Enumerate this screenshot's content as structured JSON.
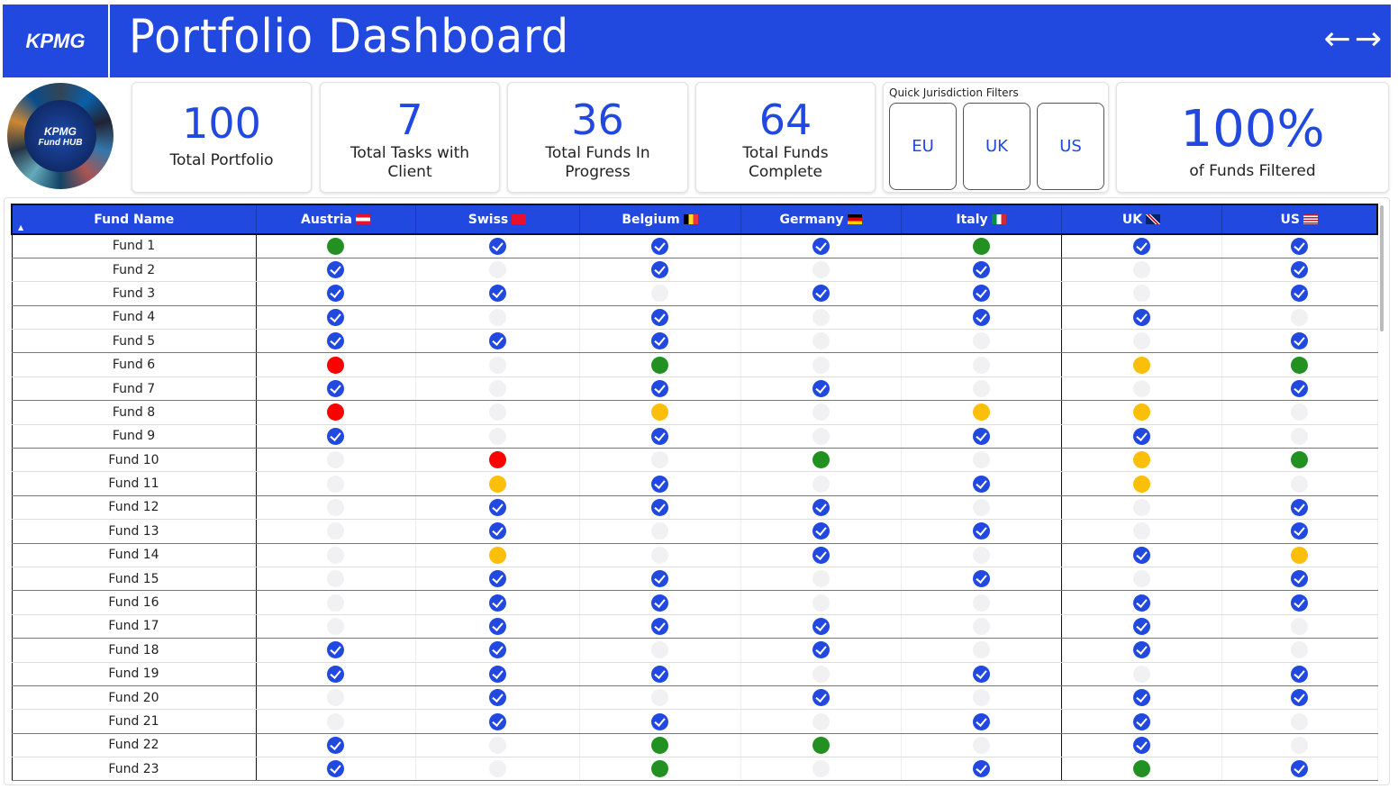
{
  "header": {
    "logo": "KPMG",
    "title": "Portfolio Dashboard",
    "back": "←",
    "forward": "→"
  },
  "hub_logo": {
    "line1": "KPMG",
    "line2": "Fund HUB"
  },
  "cards": [
    {
      "value": "100",
      "label": "Total Portfolio"
    },
    {
      "value": "7",
      "label": "Total Tasks with Client"
    },
    {
      "value": "36",
      "label": "Total Funds In Progress"
    },
    {
      "value": "64",
      "label": "Total Funds Complete"
    }
  ],
  "quick_filters": {
    "title": "Quick Jurisdiction Filters",
    "buttons": [
      "EU",
      "UK",
      "US"
    ]
  },
  "filtered": {
    "value": "100%",
    "label": "of Funds Filtered"
  },
  "colors": {
    "brand": "#2148df",
    "complete": "#2148df",
    "green": "#229122",
    "red": "#ff0000",
    "amber": "#fbbf0a",
    "empty": "#f1f1f3"
  },
  "table": {
    "columns": [
      {
        "label": "Fund Name",
        "flag": null
      },
      {
        "label": "Austria",
        "flag": "austria"
      },
      {
        "label": "Swiss",
        "flag": "swiss"
      },
      {
        "label": "Belgium",
        "flag": "belgium"
      },
      {
        "label": "Germany",
        "flag": "germany"
      },
      {
        "label": "Italy",
        "flag": "italy"
      },
      {
        "label": "UK",
        "flag": "uk"
      },
      {
        "label": "US",
        "flag": "us"
      }
    ],
    "status_legend": {
      "c": "check",
      "g": "green",
      "r": "red",
      "y": "amber",
      "e": "empty"
    },
    "rows": [
      {
        "name": "Fund 1",
        "s": "gcccgcc"
      },
      {
        "name": "Fund 2",
        "s": "cececec"
      },
      {
        "name": "Fund 3",
        "s": "cceccec"
      },
      {
        "name": "Fund 4",
        "s": "cececce"
      },
      {
        "name": "Fund 5",
        "s": "ccceeec"
      },
      {
        "name": "Fund 6",
        "s": "regeeyg"
      },
      {
        "name": "Fund 7",
        "s": "cecceec"
      },
      {
        "name": "Fund 8",
        "s": "reyeyye"
      },
      {
        "name": "Fund 9",
        "s": "cececce"
      },
      {
        "name": "Fund 10",
        "s": "eregeyg"
      },
      {
        "name": "Fund 11",
        "s": "eycecye"
      },
      {
        "name": "Fund 12",
        "s": "eccceec"
      },
      {
        "name": "Fund 13",
        "s": "ececcec"
      },
      {
        "name": "Fund 14",
        "s": "eyececy"
      },
      {
        "name": "Fund 15",
        "s": "eccecec"
      },
      {
        "name": "Fund 16",
        "s": "ecceecc"
      },
      {
        "name": "Fund 17",
        "s": "ecccece"
      },
      {
        "name": "Fund 18",
        "s": "ccecece"
      },
      {
        "name": "Fund 19",
        "s": "cccecec"
      },
      {
        "name": "Fund 20",
        "s": "ecececc"
      },
      {
        "name": "Fund 21",
        "s": "eccecce"
      },
      {
        "name": "Fund 22",
        "s": "ceggece"
      },
      {
        "name": "Fund 23",
        "s": "cegecgc"
      }
    ]
  }
}
